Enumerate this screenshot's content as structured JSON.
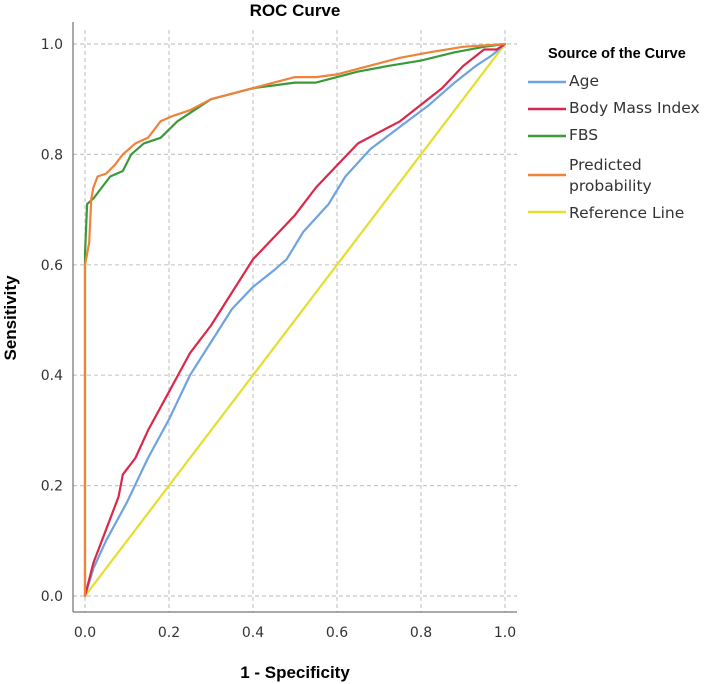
{
  "chart_data": {
    "type": "line",
    "title": "ROC Curve",
    "xlabel": "1 - Specificity",
    "ylabel": "Sensitivity",
    "xlim": [
      0,
      1
    ],
    "ylim": [
      0,
      1
    ],
    "x_ticks": [
      "0.0",
      "0.2",
      "0.4",
      "0.6",
      "0.8",
      "1.0"
    ],
    "y_ticks": [
      "0.0",
      "0.2",
      "0.4",
      "0.6",
      "0.8",
      "1.0"
    ],
    "grid": true,
    "legend_placement": "right",
    "legend_title": "Source of the Curve",
    "series": [
      {
        "name": "Age",
        "color": "#6ea3e0",
        "points": [
          [
            0,
            0
          ],
          [
            0.02,
            0.05
          ],
          [
            0.05,
            0.1
          ],
          [
            0.1,
            0.17
          ],
          [
            0.15,
            0.25
          ],
          [
            0.2,
            0.32
          ],
          [
            0.25,
            0.4
          ],
          [
            0.3,
            0.46
          ],
          [
            0.35,
            0.52
          ],
          [
            0.4,
            0.56
          ],
          [
            0.45,
            0.59
          ],
          [
            0.48,
            0.61
          ],
          [
            0.52,
            0.66
          ],
          [
            0.58,
            0.71
          ],
          [
            0.62,
            0.76
          ],
          [
            0.68,
            0.81
          ],
          [
            0.75,
            0.85
          ],
          [
            0.82,
            0.89
          ],
          [
            0.88,
            0.93
          ],
          [
            0.93,
            0.96
          ],
          [
            0.97,
            0.98
          ],
          [
            1,
            1
          ]
        ]
      },
      {
        "name": "Body Mass Index",
        "color": "#d9284a",
        "points": [
          [
            0,
            0
          ],
          [
            0.02,
            0.06
          ],
          [
            0.05,
            0.12
          ],
          [
            0.08,
            0.18
          ],
          [
            0.09,
            0.22
          ],
          [
            0.12,
            0.25
          ],
          [
            0.15,
            0.3
          ],
          [
            0.2,
            0.37
          ],
          [
            0.25,
            0.44
          ],
          [
            0.3,
            0.49
          ],
          [
            0.35,
            0.55
          ],
          [
            0.4,
            0.61
          ],
          [
            0.45,
            0.65
          ],
          [
            0.5,
            0.69
          ],
          [
            0.55,
            0.74
          ],
          [
            0.6,
            0.78
          ],
          [
            0.65,
            0.82
          ],
          [
            0.7,
            0.84
          ],
          [
            0.75,
            0.86
          ],
          [
            0.8,
            0.89
          ],
          [
            0.85,
            0.92
          ],
          [
            0.9,
            0.96
          ],
          [
            0.95,
            0.99
          ],
          [
            0.98,
            0.99
          ],
          [
            1,
            1
          ]
        ]
      },
      {
        "name": "FBS",
        "color": "#3a9a3a",
        "points": [
          [
            0,
            0
          ],
          [
            0,
            0.62
          ],
          [
            0.005,
            0.71
          ],
          [
            0.02,
            0.72
          ],
          [
            0.04,
            0.74
          ],
          [
            0.06,
            0.76
          ],
          [
            0.09,
            0.77
          ],
          [
            0.11,
            0.8
          ],
          [
            0.14,
            0.82
          ],
          [
            0.18,
            0.83
          ],
          [
            0.22,
            0.86
          ],
          [
            0.26,
            0.88
          ],
          [
            0.3,
            0.9
          ],
          [
            0.35,
            0.91
          ],
          [
            0.4,
            0.92
          ],
          [
            0.45,
            0.925
          ],
          [
            0.5,
            0.93
          ],
          [
            0.55,
            0.93
          ],
          [
            0.6,
            0.94
          ],
          [
            0.65,
            0.95
          ],
          [
            0.72,
            0.96
          ],
          [
            0.8,
            0.97
          ],
          [
            0.88,
            0.985
          ],
          [
            0.95,
            0.995
          ],
          [
            1,
            1
          ]
        ]
      },
      {
        "name": "Predicted probability",
        "color": "#f0823a",
        "points": [
          [
            0,
            0
          ],
          [
            0,
            0.6
          ],
          [
            0.01,
            0.64
          ],
          [
            0.015,
            0.72
          ],
          [
            0.02,
            0.74
          ],
          [
            0.03,
            0.76
          ],
          [
            0.05,
            0.765
          ],
          [
            0.07,
            0.78
          ],
          [
            0.09,
            0.8
          ],
          [
            0.12,
            0.82
          ],
          [
            0.15,
            0.83
          ],
          [
            0.18,
            0.86
          ],
          [
            0.21,
            0.87
          ],
          [
            0.25,
            0.88
          ],
          [
            0.3,
            0.9
          ],
          [
            0.35,
            0.91
          ],
          [
            0.4,
            0.92
          ],
          [
            0.45,
            0.93
          ],
          [
            0.5,
            0.94
          ],
          [
            0.55,
            0.94
          ],
          [
            0.6,
            0.945
          ],
          [
            0.65,
            0.955
          ],
          [
            0.7,
            0.965
          ],
          [
            0.75,
            0.975
          ],
          [
            0.82,
            0.985
          ],
          [
            0.9,
            0.995
          ],
          [
            1,
            1
          ]
        ]
      },
      {
        "name": "Reference Line",
        "color": "#e4de2c",
        "points": [
          [
            0,
            0
          ],
          [
            1,
            1
          ]
        ]
      }
    ]
  }
}
